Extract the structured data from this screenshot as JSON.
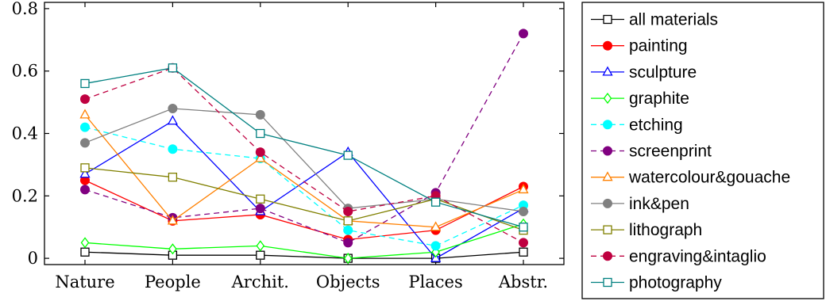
{
  "chart_data": {
    "type": "line",
    "categories": [
      "Nature",
      "People",
      "Archit.",
      "Objects",
      "Places",
      "Abstr."
    ],
    "y_ticks": [
      "0",
      "0.2",
      "0.4",
      "0.6",
      "0.8"
    ],
    "ylim": [
      -0.02,
      0.82
    ],
    "grid": false,
    "legend_position": "right",
    "series": [
      {
        "name": "all materials",
        "color": "#000000",
        "marker": "square-open",
        "dashed": false,
        "values": [
          0.02,
          0.01,
          0.01,
          0.0,
          0.0,
          0.02
        ]
      },
      {
        "name": "painting",
        "color": "#ff0000",
        "marker": "circle-filled",
        "dashed": false,
        "values": [
          0.25,
          0.12,
          0.14,
          0.06,
          0.09,
          0.23
        ]
      },
      {
        "name": "sculpture",
        "color": "#0000ff",
        "marker": "triangle-open",
        "dashed": false,
        "values": [
          0.27,
          0.44,
          0.15,
          0.34,
          0.0,
          0.16
        ]
      },
      {
        "name": "graphite",
        "color": "#00ff00",
        "marker": "diamond-open",
        "dashed": false,
        "values": [
          0.05,
          0.03,
          0.04,
          0.0,
          0.02,
          0.11
        ]
      },
      {
        "name": "etching",
        "color": "#00ffff",
        "marker": "circle-filled",
        "dashed": true,
        "values": [
          0.42,
          0.35,
          0.32,
          0.09,
          0.04,
          0.17
        ]
      },
      {
        "name": "screenprint",
        "color": "#800080",
        "marker": "circle-filled",
        "dashed": true,
        "values": [
          0.22,
          0.13,
          0.16,
          0.05,
          0.21,
          0.72
        ]
      },
      {
        "name": "watercolour&gouache",
        "color": "#ff8000",
        "marker": "triangle-open",
        "dashed": false,
        "values": [
          0.46,
          0.12,
          0.32,
          0.12,
          0.1,
          0.22
        ]
      },
      {
        "name": "ink&pen",
        "color": "#808080",
        "marker": "circle-filled",
        "dashed": false,
        "values": [
          0.37,
          0.48,
          0.46,
          0.16,
          0.19,
          0.15
        ]
      },
      {
        "name": "lithograph",
        "color": "#808000",
        "marker": "square-open",
        "dashed": false,
        "values": [
          0.29,
          0.26,
          0.19,
          0.12,
          0.19,
          0.09
        ]
      },
      {
        "name": "engraving&intaglio",
        "color": "#bf0040",
        "marker": "circle-filled",
        "dashed": true,
        "values": [
          0.51,
          0.61,
          0.34,
          0.15,
          0.2,
          0.05
        ]
      },
      {
        "name": "photography",
        "color": "#008080",
        "marker": "square-open",
        "dashed": false,
        "values": [
          0.56,
          0.61,
          0.4,
          0.33,
          0.18,
          0.1
        ]
      }
    ]
  }
}
